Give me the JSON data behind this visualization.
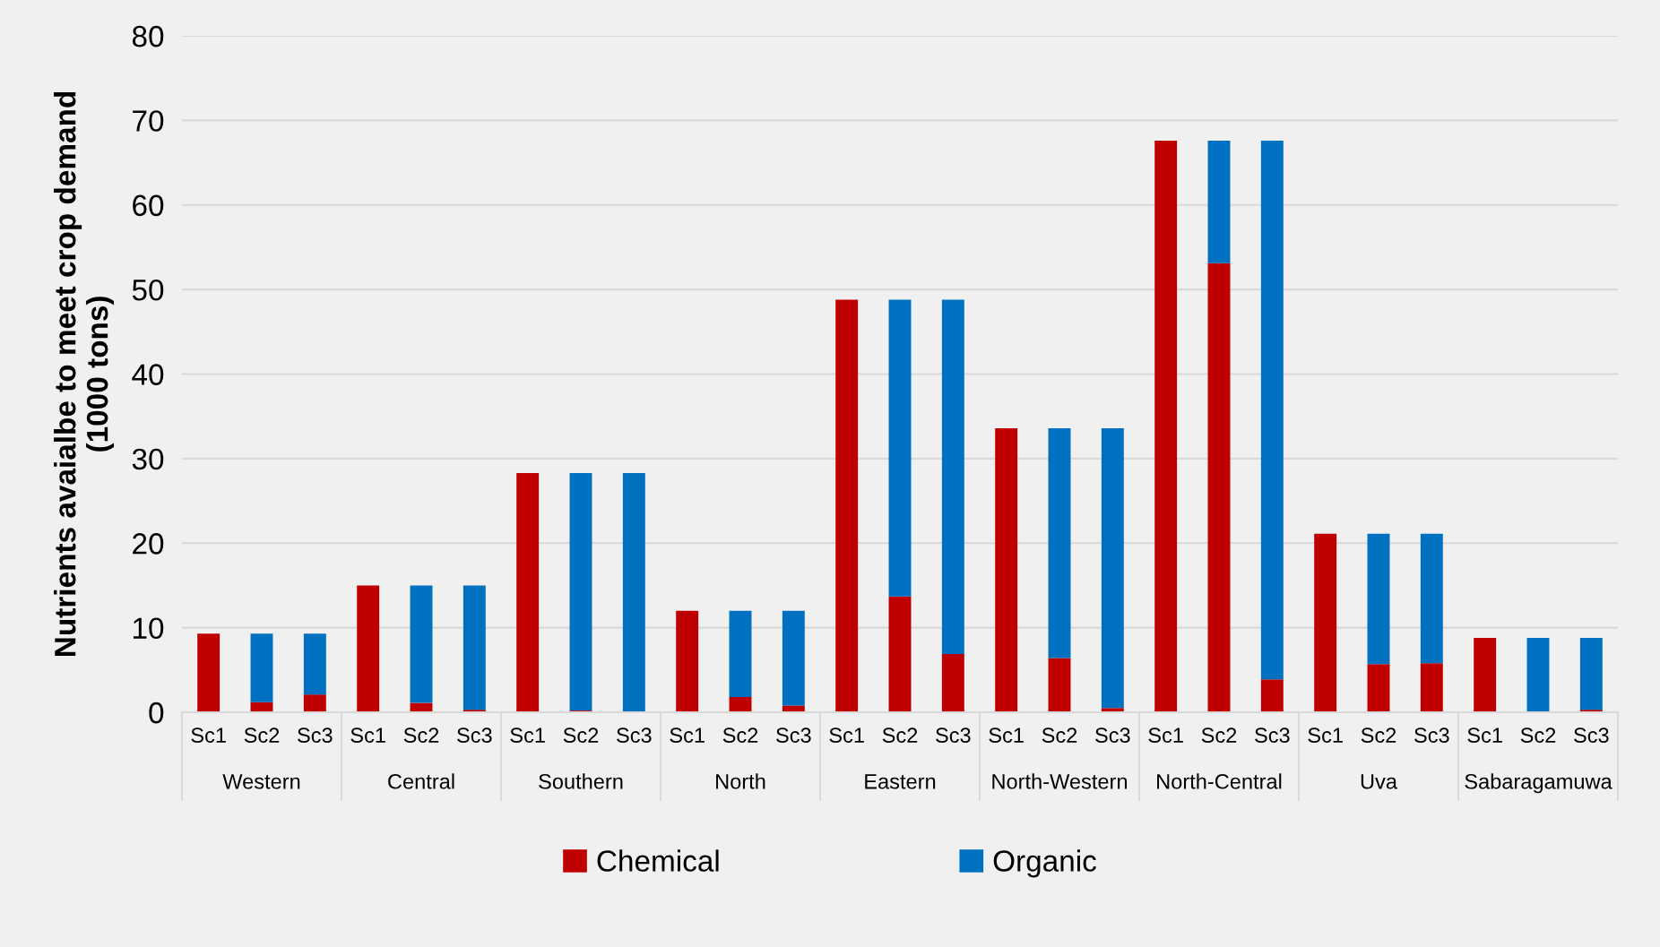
{
  "chart_data": {
    "type": "bar",
    "stacked": true,
    "ylabel": "Nutrients avaialbe to meet crop demand\n(1000 tons)",
    "categories": [
      "Sc1",
      "Sc2",
      "Sc3",
      "Sc1",
      "Sc2",
      "Sc3",
      "Sc1",
      "Sc2",
      "Sc3",
      "Sc1",
      "Sc2",
      "Sc3",
      "Sc1",
      "Sc2",
      "Sc3",
      "Sc1",
      "Sc2",
      "Sc3",
      "Sc1",
      "Sc2",
      "Sc3",
      "Sc1",
      "Sc2",
      "Sc3",
      "Sc1",
      "Sc2",
      "Sc3"
    ],
    "annotations": [
      "Western",
      "Central",
      "Southern",
      "North",
      "Eastern",
      "North-Western",
      "North-Central",
      "Uva",
      "Sabaragamuwa"
    ],
    "series": [
      {
        "name": "Chemical",
        "color": "#c00000",
        "values": [
          9.3,
          1.2,
          2.1,
          15.0,
          1.1,
          0.3,
          28.3,
          0.2,
          0,
          12.0,
          1.8,
          0.8,
          48.8,
          13.7,
          6.9,
          33.6,
          6.4,
          0.5,
          67.6,
          53.1,
          3.9,
          21.1,
          5.7,
          5.8,
          8.8,
          0,
          0.3
        ]
      },
      {
        "name": "Organic",
        "color": "#0070c0",
        "values": [
          0,
          8.1,
          7.2,
          0,
          13.9,
          14.7,
          0,
          28.1,
          28.3,
          0,
          10.2,
          11.2,
          0,
          35.1,
          41.9,
          0,
          27.2,
          33.1,
          0,
          14.5,
          63.7,
          0,
          15.4,
          15.3,
          0,
          8.8,
          8.5
        ]
      }
    ],
    "ylim": [
      0,
      80
    ],
    "yticks": [
      0,
      10,
      20,
      30,
      40,
      50,
      60,
      70,
      80
    ],
    "grid": "y",
    "legend": "bottom"
  }
}
